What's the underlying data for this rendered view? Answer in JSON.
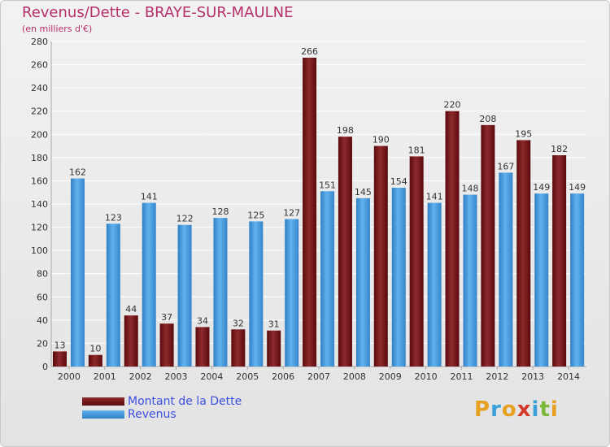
{
  "header": {
    "title": "Revenus/Dette - BRAYE-SUR-MAULNE",
    "subtitle": "(en milliers d'€)"
  },
  "legend": {
    "dette": "Montant de la Dette",
    "revenus": "Revenus"
  },
  "logo": {
    "text": "Proxiti"
  },
  "colors": {
    "dette": "#6e0f12",
    "dette_light": "#9b3a3d",
    "revenus": "#3c8fd6",
    "revenus_light": "#5fb0ee",
    "grid": "#ffffff",
    "title": "#b5306a",
    "legend_text": "#3b4fe0"
  },
  "chart_data": {
    "type": "bar",
    "title": "Revenus/Dette - BRAYE-SUR-MAULNE",
    "ylabel": "(en milliers d'€)",
    "xlabel": "",
    "ylim": [
      0,
      280
    ],
    "yticks": [
      0,
      20,
      40,
      60,
      80,
      100,
      120,
      140,
      160,
      180,
      200,
      220,
      240,
      260,
      280
    ],
    "grid": true,
    "legend_position": "bottom-left",
    "categories": [
      "2000",
      "2001",
      "2002",
      "2003",
      "2004",
      "2005",
      "2006",
      "2007",
      "2008",
      "2009",
      "2010",
      "2011",
      "2012",
      "2013",
      "2014"
    ],
    "series": [
      {
        "name": "Montant de la Dette",
        "values": [
          13,
          10,
          44,
          37,
          34,
          32,
          31,
          266,
          198,
          190,
          181,
          220,
          208,
          195,
          182
        ]
      },
      {
        "name": "Revenus",
        "values": [
          162,
          123,
          141,
          122,
          128,
          125,
          127,
          151,
          145,
          154,
          141,
          148,
          167,
          149,
          149
        ]
      }
    ]
  }
}
